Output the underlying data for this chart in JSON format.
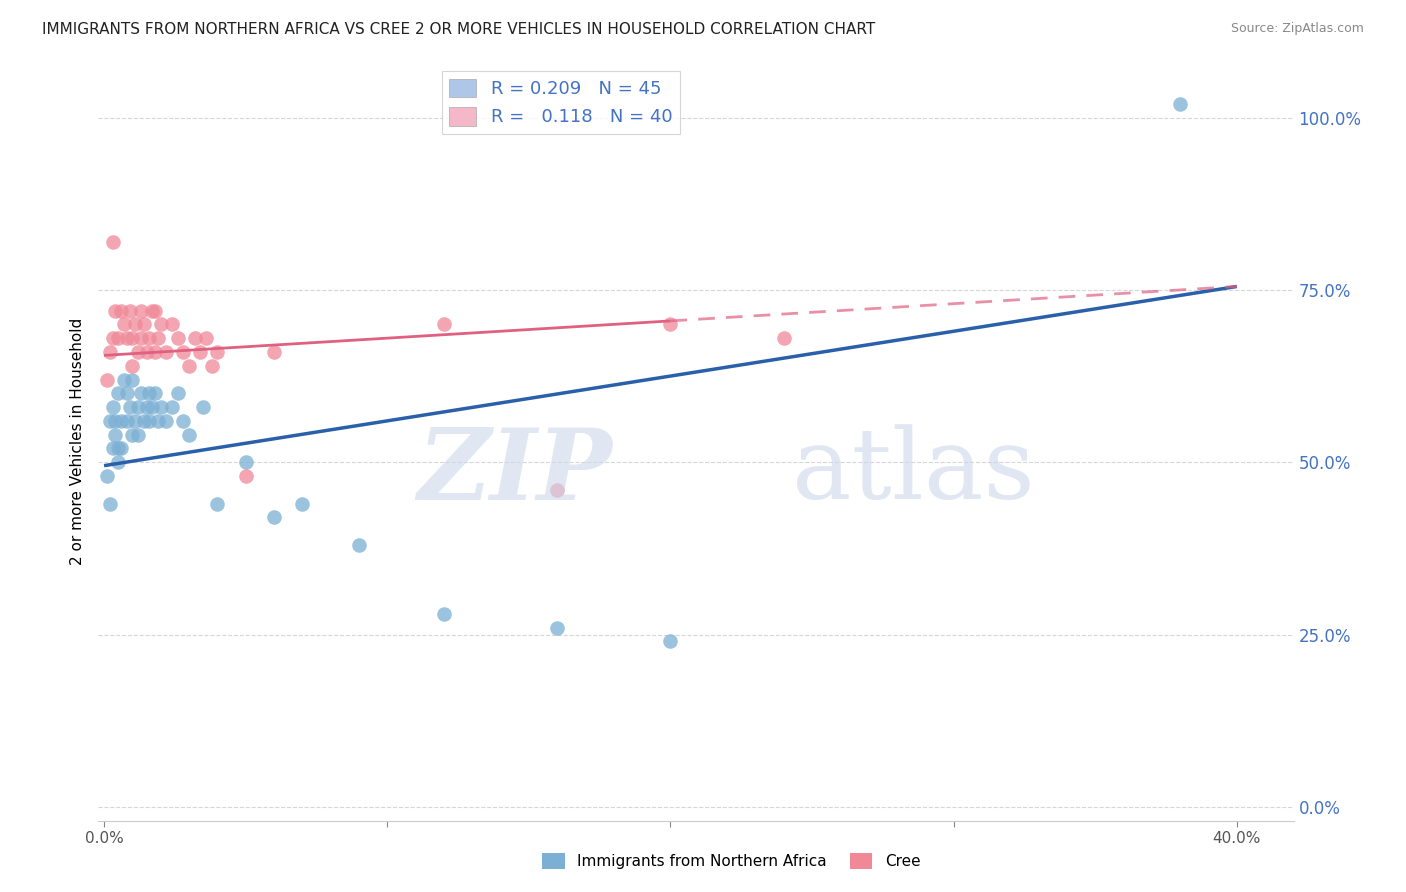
{
  "title": "IMMIGRANTS FROM NORTHERN AFRICA VS CREE 2 OR MORE VEHICLES IN HOUSEHOLD CORRELATION CHART",
  "source": "Source: ZipAtlas.com",
  "xlim": [
    -0.002,
    0.42
  ],
  "ylim": [
    -0.02,
    1.08
  ],
  "legend1_color": "#aec6e8",
  "legend2_color": "#f4b8c8",
  "scatter1_color": "#7bafd4",
  "scatter2_color": "#f08898",
  "line1_color": "#2a5faa",
  "line2_color": "#e06080",
  "watermark_zip": "ZIP",
  "watermark_atlas": "atlas",
  "scatter1_x": [
    0.001,
    0.002,
    0.002,
    0.003,
    0.003,
    0.004,
    0.004,
    0.005,
    0.005,
    0.005,
    0.006,
    0.006,
    0.007,
    0.008,
    0.008,
    0.009,
    0.01,
    0.01,
    0.011,
    0.012,
    0.012,
    0.013,
    0.014,
    0.015,
    0.016,
    0.016,
    0.017,
    0.018,
    0.019,
    0.02,
    0.022,
    0.024,
    0.026,
    0.028,
    0.03,
    0.035,
    0.04,
    0.05,
    0.06,
    0.07,
    0.09,
    0.12,
    0.16,
    0.2,
    0.38
  ],
  "scatter1_y": [
    0.48,
    0.44,
    0.56,
    0.52,
    0.58,
    0.54,
    0.56,
    0.5,
    0.52,
    0.6,
    0.52,
    0.56,
    0.62,
    0.56,
    0.6,
    0.58,
    0.54,
    0.62,
    0.56,
    0.58,
    0.54,
    0.6,
    0.56,
    0.58,
    0.6,
    0.56,
    0.58,
    0.6,
    0.56,
    0.58,
    0.56,
    0.58,
    0.6,
    0.56,
    0.54,
    0.58,
    0.44,
    0.5,
    0.42,
    0.44,
    0.38,
    0.28,
    0.26,
    0.24,
    1.02
  ],
  "scatter2_x": [
    0.001,
    0.002,
    0.003,
    0.003,
    0.004,
    0.005,
    0.006,
    0.007,
    0.008,
    0.009,
    0.01,
    0.01,
    0.011,
    0.012,
    0.013,
    0.013,
    0.014,
    0.015,
    0.016,
    0.017,
    0.018,
    0.018,
    0.019,
    0.02,
    0.022,
    0.024,
    0.026,
    0.028,
    0.03,
    0.032,
    0.034,
    0.036,
    0.038,
    0.04,
    0.05,
    0.06,
    0.12,
    0.16,
    0.2,
    0.24
  ],
  "scatter2_y": [
    0.62,
    0.66,
    0.82,
    0.68,
    0.72,
    0.68,
    0.72,
    0.7,
    0.68,
    0.72,
    0.64,
    0.68,
    0.7,
    0.66,
    0.68,
    0.72,
    0.7,
    0.66,
    0.68,
    0.72,
    0.66,
    0.72,
    0.68,
    0.7,
    0.66,
    0.7,
    0.68,
    0.66,
    0.64,
    0.68,
    0.66,
    0.68,
    0.64,
    0.66,
    0.48,
    0.66,
    0.7,
    0.46,
    0.7,
    0.68
  ],
  "R1": 0.209,
  "R2": 0.118,
  "N1": 45,
  "N2": 40,
  "line1_x0": 0.0,
  "line1_y0": 0.495,
  "line1_x1": 0.4,
  "line1_y1": 0.755,
  "line2_x0": 0.0,
  "line2_y0": 0.655,
  "line2_x1": 0.4,
  "line2_y1": 0.755,
  "line2_dash_x0": 0.2,
  "line2_dash_x1": 0.4
}
